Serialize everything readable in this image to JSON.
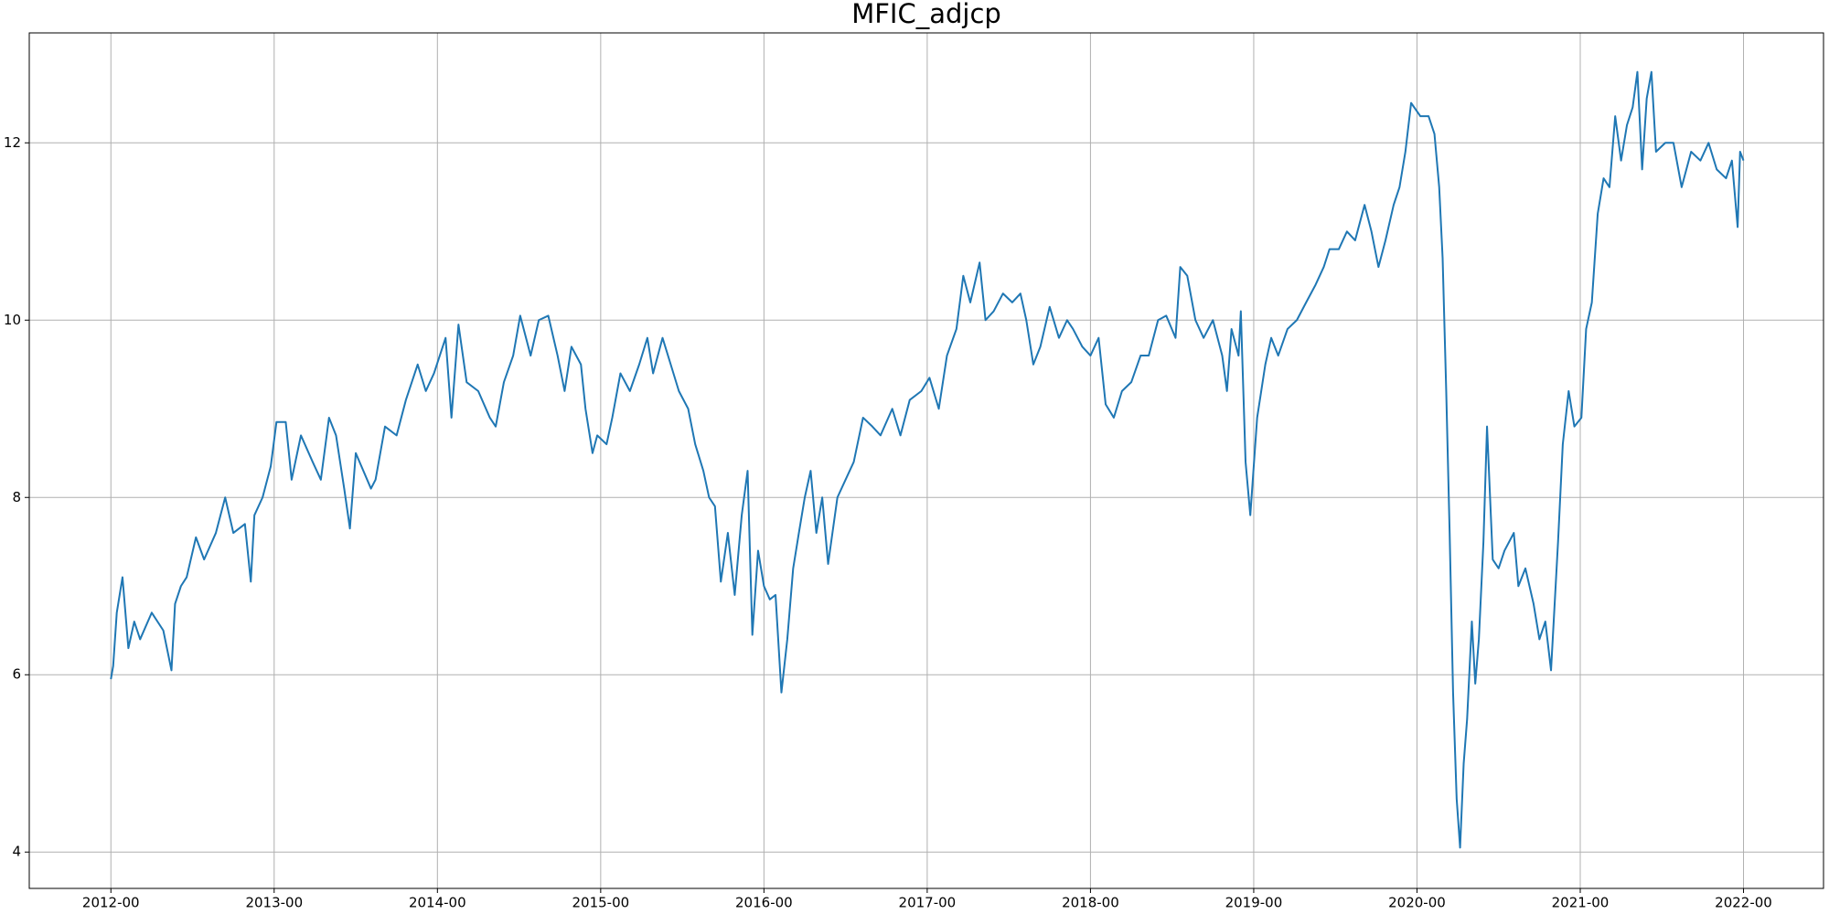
{
  "chart_data": {
    "type": "line",
    "title": "MFIC_adjcp",
    "x": [
      2012.0,
      2012.014,
      2012.036,
      2012.071,
      2012.107,
      2012.143,
      2012.179,
      2012.25,
      2012.321,
      2012.371,
      2012.393,
      2012.429,
      2012.464,
      2012.521,
      2012.571,
      2012.643,
      2012.7,
      2012.75,
      2012.821,
      2012.857,
      2012.879,
      2012.929,
      2012.979,
      2013.014,
      2013.071,
      2013.107,
      2013.164,
      2013.236,
      2013.286,
      2013.336,
      2013.379,
      2013.429,
      2013.464,
      2013.5,
      2013.593,
      2013.621,
      2013.679,
      2013.75,
      2013.807,
      2013.879,
      2013.929,
      2013.979,
      2014.05,
      2014.086,
      2014.129,
      2014.179,
      2014.25,
      2014.321,
      2014.357,
      2014.407,
      2014.464,
      2014.507,
      2014.571,
      2014.621,
      2014.679,
      2014.736,
      2014.779,
      2014.821,
      2014.879,
      2014.907,
      2014.95,
      2014.979,
      2015.036,
      2015.071,
      2015.121,
      2015.179,
      2015.236,
      2015.286,
      2015.321,
      2015.379,
      2015.429,
      2015.479,
      2015.536,
      2015.579,
      2015.629,
      2015.664,
      2015.7,
      2015.736,
      2015.779,
      2015.821,
      2015.864,
      2015.9,
      2015.929,
      2015.964,
      2016.0,
      2016.036,
      2016.071,
      2016.107,
      2016.143,
      2016.179,
      2016.214,
      2016.25,
      2016.286,
      2016.321,
      2016.357,
      2016.393,
      2016.45,
      2016.5,
      2016.55,
      2016.607,
      2016.664,
      2016.714,
      2016.786,
      2016.836,
      2016.893,
      2016.964,
      2017.014,
      2017.071,
      2017.121,
      2017.179,
      2017.221,
      2017.264,
      2017.321,
      2017.357,
      2017.407,
      2017.464,
      2017.521,
      2017.571,
      2017.607,
      2017.65,
      2017.693,
      2017.75,
      2017.807,
      2017.857,
      2017.893,
      2017.95,
      2018.0,
      2018.05,
      2018.093,
      2018.143,
      2018.193,
      2018.25,
      2018.307,
      2018.357,
      2018.414,
      2018.464,
      2018.521,
      2018.55,
      2018.593,
      2018.643,
      2018.693,
      2018.75,
      2018.807,
      2018.836,
      2018.864,
      2018.907,
      2018.921,
      2018.95,
      2018.979,
      2019.021,
      2019.071,
      2019.107,
      2019.15,
      2019.207,
      2019.264,
      2019.321,
      2019.379,
      2019.429,
      2019.464,
      2019.521,
      2019.571,
      2019.621,
      2019.679,
      2019.721,
      2019.764,
      2019.807,
      2019.857,
      2019.893,
      2019.929,
      2019.964,
      2020.021,
      2020.071,
      2020.107,
      2020.136,
      2020.157,
      2020.179,
      2020.2,
      2020.221,
      2020.243,
      2020.264,
      2020.286,
      2020.307,
      2020.336,
      2020.357,
      2020.379,
      2020.407,
      2020.429,
      2020.464,
      2020.5,
      2020.536,
      2020.593,
      2020.621,
      2020.664,
      2020.714,
      2020.75,
      2020.786,
      2020.821,
      2020.864,
      2020.893,
      2020.929,
      2020.964,
      2021.007,
      2021.036,
      2021.071,
      2021.107,
      2021.143,
      2021.179,
      2021.214,
      2021.25,
      2021.286,
      2021.321,
      2021.35,
      2021.379,
      2021.407,
      2021.436,
      2021.464,
      2021.521,
      2021.571,
      2021.621,
      2021.679,
      2021.736,
      2021.786,
      2021.836,
      2021.893,
      2021.929,
      2021.964,
      2021.979,
      2022.0
    ],
    "series": [
      {
        "color": "#1f77b4",
        "values": [
          5.95,
          6.1,
          6.7,
          7.1,
          6.3,
          6.6,
          6.4,
          6.7,
          6.5,
          6.05,
          6.8,
          7.0,
          7.1,
          7.55,
          7.3,
          7.6,
          8.0,
          7.6,
          7.7,
          7.05,
          7.8,
          8.0,
          8.35,
          8.85,
          8.85,
          8.2,
          8.7,
          8.4,
          8.2,
          8.9,
          8.7,
          8.1,
          7.65,
          8.5,
          8.1,
          8.2,
          8.8,
          8.7,
          9.1,
          9.5,
          9.2,
          9.4,
          9.8,
          8.9,
          9.95,
          9.3,
          9.2,
          8.9,
          8.8,
          9.3,
          9.6,
          10.05,
          9.6,
          10.0,
          10.05,
          9.6,
          9.2,
          9.7,
          9.5,
          9.0,
          8.5,
          8.7,
          8.6,
          8.9,
          9.4,
          9.2,
          9.5,
          9.8,
          9.4,
          9.8,
          9.5,
          9.2,
          9.0,
          8.6,
          8.3,
          8.0,
          7.9,
          7.05,
          7.6,
          6.9,
          7.8,
          8.3,
          6.45,
          7.4,
          7.0,
          6.85,
          6.9,
          5.8,
          6.4,
          7.2,
          7.6,
          8.0,
          8.3,
          7.6,
          8.0,
          7.25,
          8.0,
          8.2,
          8.4,
          8.9,
          8.8,
          8.7,
          9.0,
          8.7,
          9.1,
          9.2,
          9.35,
          9.0,
          9.6,
          9.9,
          10.5,
          10.2,
          10.65,
          10.0,
          10.1,
          10.3,
          10.2,
          10.3,
          10.0,
          9.5,
          9.7,
          10.15,
          9.8,
          10.0,
          9.9,
          9.7,
          9.6,
          9.8,
          9.05,
          8.9,
          9.2,
          9.3,
          9.6,
          9.6,
          10.0,
          10.05,
          9.8,
          10.6,
          10.5,
          10.0,
          9.8,
          10.0,
          9.6,
          9.2,
          9.9,
          9.6,
          10.1,
          8.4,
          7.8,
          8.9,
          9.5,
          9.8,
          9.6,
          9.9,
          10.0,
          10.2,
          10.4,
          10.6,
          10.8,
          10.8,
          11.0,
          10.9,
          11.3,
          11.0,
          10.6,
          10.9,
          11.3,
          11.5,
          11.9,
          12.45,
          12.3,
          12.3,
          12.1,
          11.5,
          10.7,
          9.2,
          7.6,
          5.8,
          4.6,
          4.05,
          5.0,
          5.5,
          6.6,
          5.9,
          6.4,
          7.5,
          8.8,
          7.3,
          7.2,
          7.4,
          7.6,
          7.0,
          7.2,
          6.8,
          6.4,
          6.6,
          6.05,
          7.5,
          8.6,
          9.2,
          8.8,
          8.9,
          9.9,
          10.2,
          11.2,
          11.6,
          11.5,
          12.3,
          11.8,
          12.2,
          12.4,
          12.8,
          11.7,
          12.5,
          12.8,
          11.9,
          12.0,
          12.0,
          11.5,
          11.9,
          11.8,
          12.0,
          11.7,
          11.6,
          11.8,
          11.05,
          11.9,
          11.8
        ]
      }
    ],
    "xlim": [
      2011.5,
      2022.49
    ],
    "xticks": [
      {
        "value": 2012,
        "label": "2012-00"
      },
      {
        "value": 2013,
        "label": "2013-00"
      },
      {
        "value": 2014,
        "label": "2014-00"
      },
      {
        "value": 2015,
        "label": "2015-00"
      },
      {
        "value": 2016,
        "label": "2016-00"
      },
      {
        "value": 2017,
        "label": "2017-00"
      },
      {
        "value": 2018,
        "label": "2018-00"
      },
      {
        "value": 2019,
        "label": "2019-00"
      },
      {
        "value": 2020,
        "label": "2020-00"
      },
      {
        "value": 2021,
        "label": "2021-00"
      },
      {
        "value": 2022,
        "label": "2022-00"
      }
    ],
    "ylim": [
      3.59,
      13.24
    ],
    "yticks": [
      4,
      6,
      8,
      10,
      12
    ],
    "grid": true
  }
}
